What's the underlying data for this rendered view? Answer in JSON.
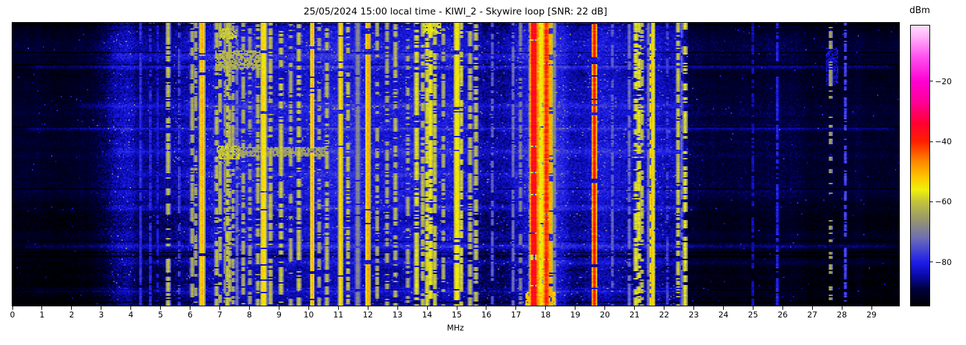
{
  "title": "25/05/2024 15:00 local time - KIWI_2 - Skywire loop [SNR: 22 dB]",
  "station": "KIWI_2",
  "antenna": "Skywire loop",
  "snr_db": 22,
  "timestamp_label": "25/05/2024 15:00 local time",
  "x_axis": {
    "label": "MHz",
    "ticks": [
      0,
      1,
      2,
      3,
      4,
      5,
      6,
      7,
      8,
      9,
      10,
      11,
      12,
      13,
      14,
      15,
      16,
      17,
      18,
      19,
      20,
      21,
      22,
      23,
      24,
      25,
      26,
      27,
      28,
      29
    ],
    "range": [
      0,
      29.93
    ]
  },
  "colorbar": {
    "label": "dBm",
    "ticks": [
      -20,
      -40,
      -60,
      -80
    ],
    "range_dbm": [
      -94.5,
      -1.5
    ],
    "stops": [
      [
        -94.5,
        "#000000"
      ],
      [
        -89,
        "#00003c"
      ],
      [
        -84,
        "#0b0bb4"
      ],
      [
        -80,
        "#1e1ee8"
      ],
      [
        -76,
        "#4646d2"
      ],
      [
        -72,
        "#6e6eb4"
      ],
      [
        -66,
        "#96966e"
      ],
      [
        -60,
        "#c3c33c"
      ],
      [
        -56,
        "#f0f00a"
      ],
      [
        -52,
        "#ffc800"
      ],
      [
        -47,
        "#ff8c00"
      ],
      [
        -40,
        "#ff1e00"
      ],
      [
        -34,
        "#ff0032"
      ],
      [
        -27,
        "#ff0096"
      ],
      [
        -20,
        "#ff00d2"
      ],
      [
        -12,
        "#ff50f0"
      ],
      [
        -5,
        "#ffb4fa"
      ],
      [
        -1.5,
        "#ffdcff"
      ]
    ]
  },
  "chart_data": {
    "type": "heatmap",
    "subtype": "hf-spectrogram-waterfall",
    "x_unit": "MHz",
    "value_unit": "dBm",
    "x_range_mhz": [
      0,
      29.93
    ],
    "value_range_dbm": [
      -94.5,
      -1.5
    ],
    "render": {
      "cols": 643,
      "rows": 205,
      "seed": 1337
    },
    "noise_floor_points": [
      [
        0,
        -91.5
      ],
      [
        1.5,
        -91.5
      ],
      [
        2.5,
        -90.5
      ],
      [
        3.1,
        -88
      ],
      [
        3.45,
        -84.5
      ],
      [
        3.85,
        -83.5
      ],
      [
        4.2,
        -86.5
      ],
      [
        5.0,
        -86.5
      ],
      [
        5.6,
        -85
      ],
      [
        6.2,
        -83
      ],
      [
        6.8,
        -81.5
      ],
      [
        7.6,
        -81
      ],
      [
        8.4,
        -81.5
      ],
      [
        9.5,
        -82
      ],
      [
        10.5,
        -82
      ],
      [
        11.5,
        -82.5
      ],
      [
        12.5,
        -82.5
      ],
      [
        13.5,
        -82
      ],
      [
        14.5,
        -81.5
      ],
      [
        15.3,
        -82.5
      ],
      [
        15.9,
        -85.5
      ],
      [
        16.6,
        -85
      ],
      [
        17.1,
        -82
      ],
      [
        17.5,
        -79.5
      ],
      [
        18.5,
        -79.5
      ],
      [
        18.85,
        -84
      ],
      [
        19.3,
        -85
      ],
      [
        19.8,
        -83.5
      ],
      [
        21.0,
        -83
      ],
      [
        22.0,
        -83.5
      ],
      [
        22.6,
        -84
      ],
      [
        22.85,
        -89
      ],
      [
        23.5,
        -90
      ],
      [
        25.0,
        -90.5
      ],
      [
        27.0,
        -90.8
      ],
      [
        29.93,
        -91
      ]
    ],
    "signal_fields": [
      "mhz",
      "dbm",
      "width_mhz",
      "duty",
      "kind"
    ],
    "signals": [
      [
        4.32,
        -78,
        0.02,
        0.85,
        "line"
      ],
      [
        4.65,
        -79,
        0.02,
        0.7,
        "line"
      ],
      [
        4.9,
        -80,
        0.02,
        0.5,
        "line"
      ],
      [
        5.25,
        -61,
        0.03,
        0.5,
        "line"
      ],
      [
        5.62,
        -76,
        0.02,
        0.6,
        "line"
      ],
      [
        6.07,
        -63,
        0.03,
        0.6,
        "line"
      ],
      [
        6.18,
        -64,
        0.02,
        0.45,
        "line"
      ],
      [
        6.4,
        -50,
        0.035,
        1,
        "line"
      ],
      [
        6.89,
        -62,
        0.03,
        0.5,
        "line"
      ],
      [
        7.0,
        -61,
        0.025,
        0.55,
        "line"
      ],
      [
        7.17,
        -68,
        0.02,
        0.8,
        "line"
      ],
      [
        7.25,
        -60,
        0.03,
        0.6,
        "line"
      ],
      [
        7.33,
        -61,
        0.025,
        0.5,
        "line"
      ],
      [
        7.45,
        -63,
        0.02,
        0.4,
        "line"
      ],
      [
        7.59,
        -72,
        0.02,
        0.8,
        "line"
      ],
      [
        7.8,
        -62,
        0.025,
        0.5,
        "line"
      ],
      [
        8.02,
        -64,
        0.02,
        0.4,
        "line"
      ],
      [
        8.29,
        -62,
        0.025,
        0.5,
        "line"
      ],
      [
        8.48,
        -54,
        0.055,
        0.95,
        "line"
      ],
      [
        8.72,
        -61,
        0.03,
        0.55,
        "line"
      ],
      [
        9.07,
        -60,
        0.03,
        0.6,
        "line"
      ],
      [
        9.4,
        -63,
        0.02,
        0.4,
        "line"
      ],
      [
        9.67,
        -60,
        0.03,
        0.6,
        "line"
      ],
      [
        10.12,
        -50,
        0.02,
        1,
        "line"
      ],
      [
        10.36,
        -63,
        0.02,
        0.35,
        "line"
      ],
      [
        10.62,
        -61,
        0.025,
        0.5,
        "line"
      ],
      [
        11.09,
        -52,
        0.02,
        0.95,
        "line"
      ],
      [
        11.33,
        -60,
        0.025,
        0.5,
        "line"
      ],
      [
        11.66,
        -68,
        0.09,
        1,
        "soft"
      ],
      [
        12.0,
        -50,
        0.035,
        1,
        "line"
      ],
      [
        12.32,
        -62,
        0.02,
        0.5,
        "line"
      ],
      [
        12.65,
        -63,
        0.02,
        0.4,
        "line"
      ],
      [
        12.93,
        -61,
        0.025,
        0.55,
        "line"
      ],
      [
        13.35,
        -63,
        0.02,
        0.4,
        "line"
      ],
      [
        13.65,
        -58,
        0.04,
        0.7,
        "line"
      ],
      [
        13.85,
        -60,
        0.025,
        0.55,
        "line"
      ],
      [
        14.0,
        -58,
        0.03,
        0.75,
        "line"
      ],
      [
        14.12,
        -56,
        0.035,
        0.8,
        "line"
      ],
      [
        14.26,
        -59,
        0.025,
        0.65,
        "line"
      ],
      [
        14.55,
        -62,
        0.02,
        0.45,
        "line"
      ],
      [
        15.0,
        -55,
        0.05,
        0.9,
        "line"
      ],
      [
        15.15,
        -58,
        0.03,
        0.6,
        "line"
      ],
      [
        15.45,
        -62,
        0.03,
        0.55,
        "line"
      ],
      [
        15.65,
        -61,
        0.03,
        0.65,
        "line"
      ],
      [
        16.2,
        -74,
        0.02,
        0.5,
        "line"
      ],
      [
        16.9,
        -72,
        0.02,
        0.7,
        "line"
      ],
      [
        17.15,
        -68,
        0.02,
        0.5,
        "line"
      ],
      [
        17.52,
        -56,
        0.03,
        0.8,
        "line"
      ],
      [
        17.6,
        -37,
        0.075,
        1,
        "line"
      ],
      [
        17.72,
        -47,
        0.03,
        1,
        "line"
      ],
      [
        17.81,
        -56,
        0.05,
        0.9,
        "line"
      ],
      [
        17.9,
        -54,
        0.04,
        0.85,
        "line"
      ],
      [
        18.02,
        -40.5,
        0.05,
        1,
        "line"
      ],
      [
        18.14,
        -50,
        0.04,
        0.8,
        "line"
      ],
      [
        18.3,
        -68,
        0.06,
        1,
        "soft"
      ],
      [
        19.64,
        -39,
        0.025,
        0.97,
        "line"
      ],
      [
        20.25,
        -74,
        0.02,
        0.6,
        "line"
      ],
      [
        20.82,
        -71,
        0.02,
        0.85,
        "line"
      ],
      [
        21.05,
        -58,
        0.035,
        0.55,
        "line"
      ],
      [
        21.15,
        -57,
        0.035,
        0.6,
        "line"
      ],
      [
        21.24,
        -60,
        0.025,
        0.45,
        "line"
      ],
      [
        21.47,
        -70,
        0.02,
        0.9,
        "line"
      ],
      [
        21.57,
        -50,
        0.025,
        0.55,
        "line"
      ],
      [
        21.62,
        -56,
        0.03,
        0.95,
        "line"
      ],
      [
        22.1,
        -76,
        0.02,
        0.4,
        "line"
      ],
      [
        22.47,
        -59,
        0.025,
        0.5,
        "line"
      ],
      [
        22.6,
        -73,
        0.018,
        0.9,
        "line"
      ],
      [
        22.71,
        -58,
        0.03,
        0.6,
        "line"
      ],
      [
        25.0,
        -83,
        0.02,
        0.6,
        "line"
      ],
      [
        25.82,
        -79,
        0.02,
        0.75,
        "line"
      ],
      [
        27.62,
        -64,
        0.02,
        0.12,
        "line"
      ],
      [
        28.12,
        -76,
        0.02,
        0.55,
        "line"
      ]
    ],
    "streak_fields": [
      "y_frac",
      "f0",
      "f1",
      "amp_db",
      "half_rows"
    ],
    "streaks": [
      [
        0.117,
        3.2,
        18.6,
        3.5,
        1.5
      ],
      [
        0.154,
        0.4,
        29.9,
        5.0,
        1.2
      ],
      [
        0.29,
        2.0,
        23.0,
        3.0,
        1.5
      ],
      [
        0.371,
        0.3,
        29.9,
        4.0,
        1.2
      ],
      [
        0.451,
        3.2,
        23.0,
        3.5,
        1.5
      ],
      [
        0.534,
        4.0,
        19.0,
        2.5,
        1.5
      ],
      [
        0.651,
        3.0,
        23.2,
        3.5,
        1.5
      ],
      [
        0.724,
        5.5,
        16.0,
        2.5,
        1.2
      ],
      [
        0.788,
        0.3,
        29.9,
        4.0,
        1.2
      ],
      [
        0.846,
        3.3,
        29.9,
        3.0,
        1.2
      ],
      [
        0.944,
        0.5,
        23.0,
        3.5,
        1.2
      ]
    ],
    "patch_fields": [
      "f0",
      "f1",
      "y0_frac",
      "y1_frac",
      "dbm"
    ],
    "patches": [
      [
        6.85,
        8.3,
        0.1,
        0.16,
        -63
      ],
      [
        6.9,
        7.6,
        0.435,
        0.475,
        -60
      ],
      [
        7.6,
        10.6,
        0.44,
        0.465,
        -65
      ],
      [
        17.35,
        18.25,
        0.955,
        1.0,
        -52
      ],
      [
        27.5,
        27.8,
        0.09,
        0.21,
        -83
      ],
      [
        7.0,
        7.5,
        0.02,
        0.05,
        -60
      ],
      [
        13.9,
        14.4,
        0.0,
        0.03,
        -58
      ]
    ]
  }
}
